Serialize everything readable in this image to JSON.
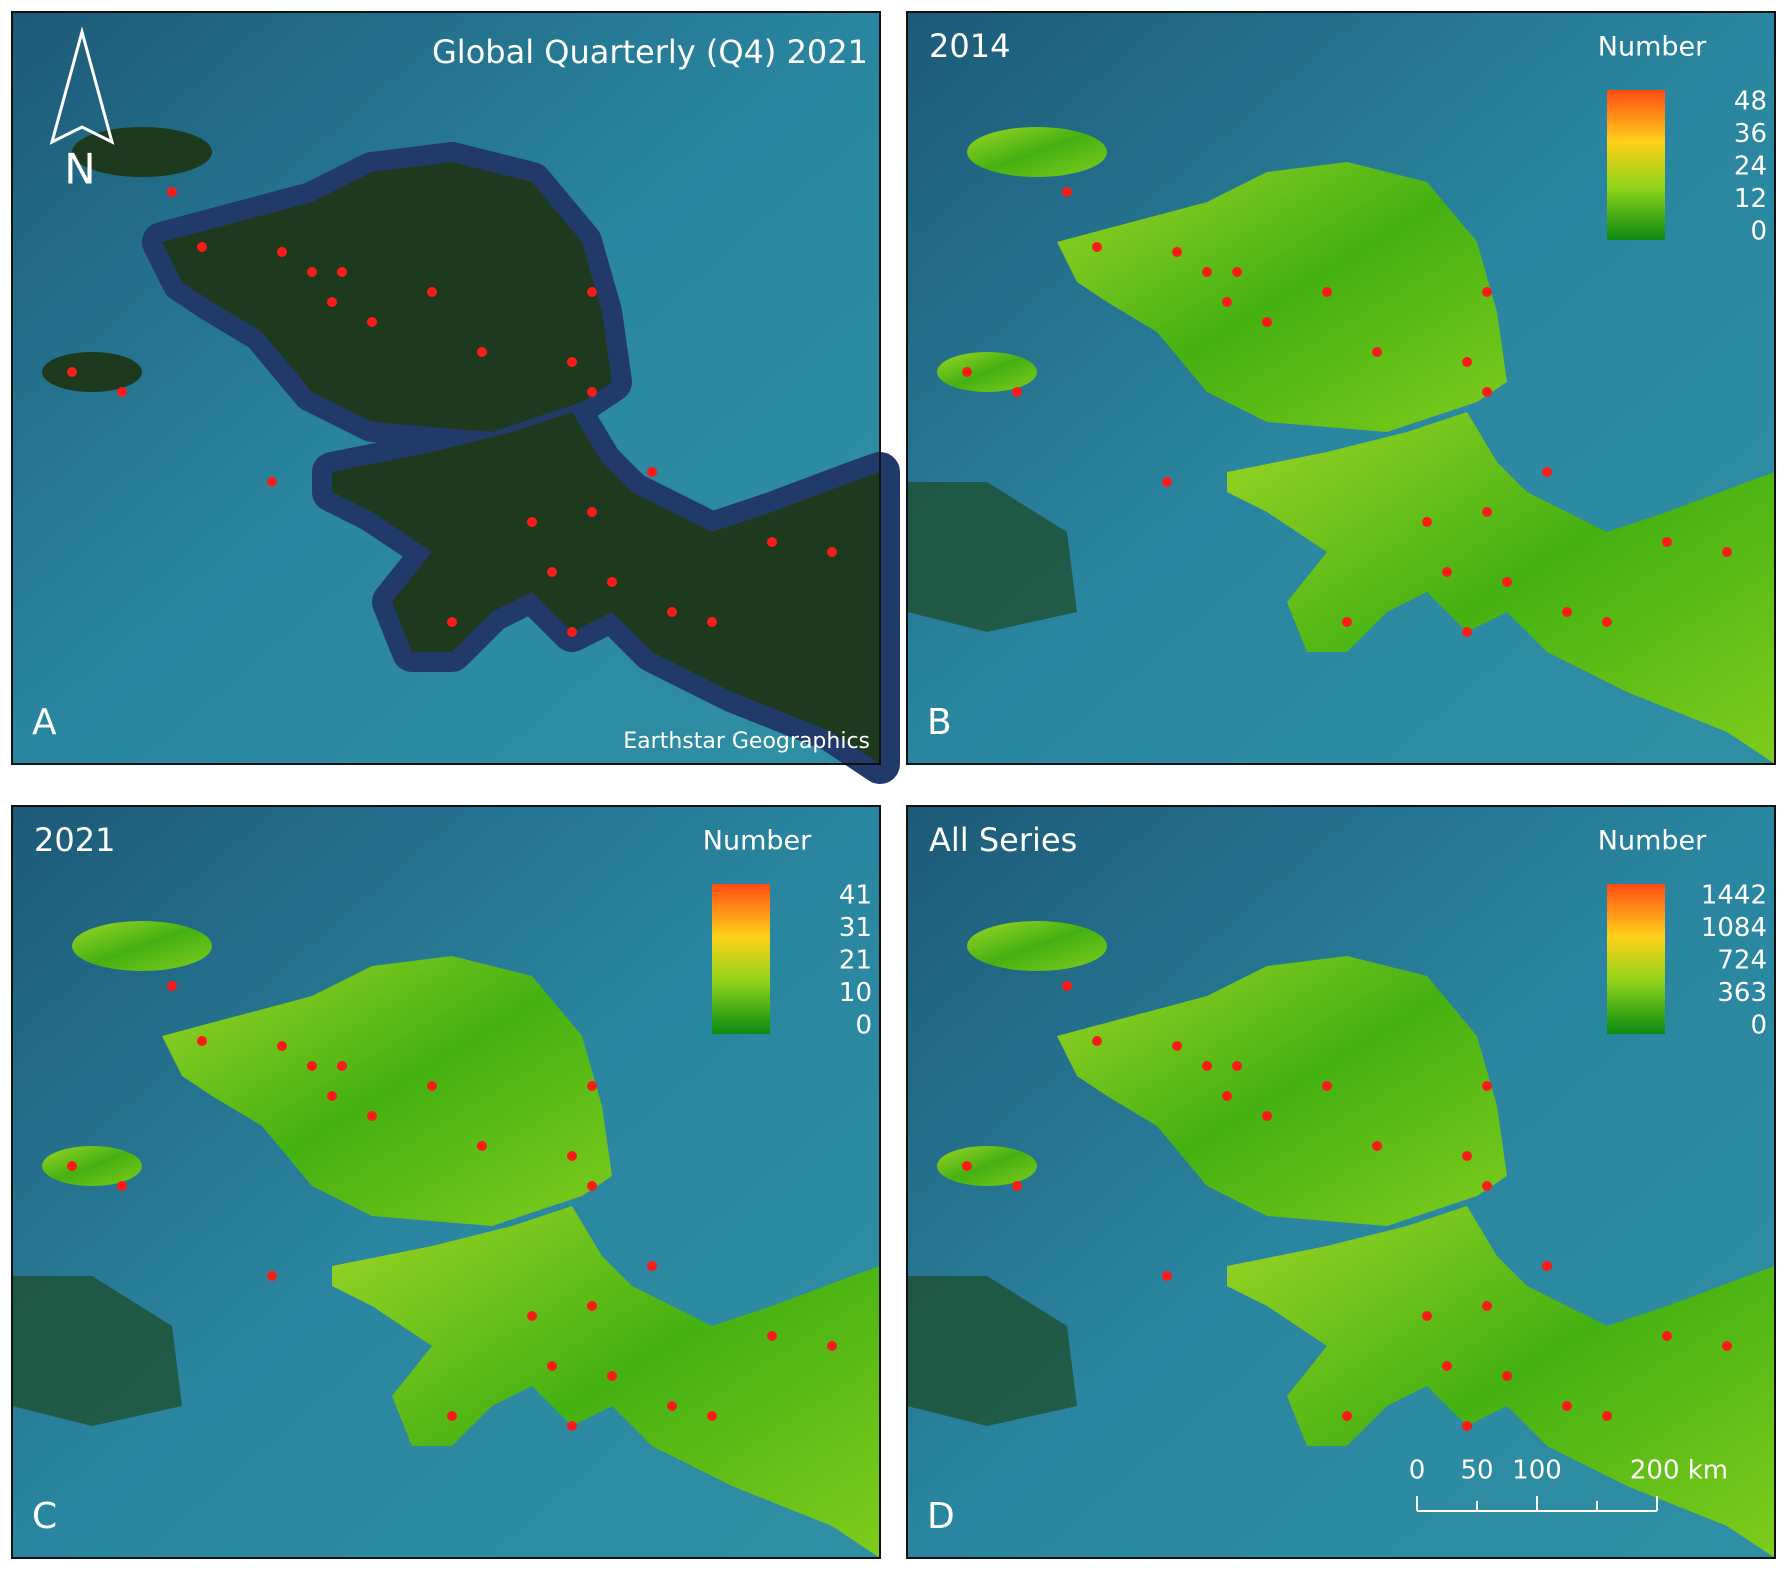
{
  "panels": [
    {
      "letter": "A",
      "title": "Global Quarterly (Q4) 2021",
      "credit": "Earthstar Geographics",
      "north": "N"
    },
    {
      "letter": "B",
      "title": "2014",
      "legend": {
        "title": "Number",
        "ticks": [
          48,
          36,
          24,
          12,
          0
        ]
      }
    },
    {
      "letter": "C",
      "title": "2021",
      "legend": {
        "title": "Number",
        "ticks": [
          41,
          31,
          21,
          10,
          0
        ]
      }
    },
    {
      "letter": "D",
      "title": "All Series",
      "legend": {
        "title": "Number",
        "ticks": [
          1442,
          1084,
          724,
          363,
          0
        ]
      },
      "scale_bar": [
        "0",
        "50",
        "100",
        "200 km"
      ]
    }
  ]
}
